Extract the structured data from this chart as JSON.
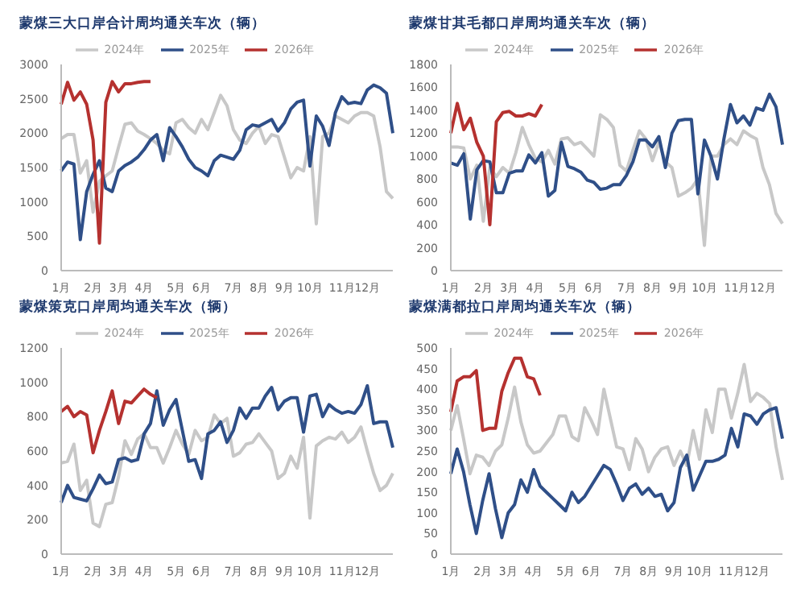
{
  "chart_data": [
    {
      "type": "line",
      "title": "蒙煤三大口岸合计周均通关车次（辆）",
      "legend": "top",
      "marker": "none",
      "grid": false,
      "categories": [
        "1月",
        null,
        null,
        null,
        null,
        "2月",
        null,
        null,
        null,
        "3月",
        null,
        null,
        null,
        "4月",
        null,
        null,
        null,
        null,
        "5月",
        null,
        null,
        null,
        "6月",
        null,
        null,
        null,
        null,
        "7月",
        null,
        null,
        null,
        "8月",
        null,
        null,
        null,
        "9月",
        null,
        null,
        null,
        "10月",
        null,
        null,
        null,
        null,
        "11月",
        null,
        null,
        null,
        "12月",
        null,
        null,
        null,
        null
      ],
      "ylim": [
        0,
        3000
      ],
      "yticks": [
        0,
        500,
        1000,
        1500,
        2000,
        2500,
        3000
      ],
      "series": [
        {
          "name": "2024年",
          "color": "#c8c8c8",
          "values": [
            1920,
            1980,
            1980,
            1420,
            1600,
            850,
            1300,
            1380,
            1450,
            1800,
            2130,
            2150,
            2030,
            1980,
            1920,
            1850,
            1750,
            1700,
            2150,
            2200,
            2080,
            2000,
            2200,
            2050,
            2300,
            2550,
            2400,
            2050,
            1900,
            1850,
            2000,
            2100,
            1850,
            1980,
            1950,
            1650,
            1350,
            1500,
            1450,
            1950,
            680,
            1950,
            2000,
            2250,
            2200,
            2150,
            2250,
            2300,
            2300,
            2250,
            1800,
            1150,
            1050
          ]
        },
        {
          "name": "2025年",
          "color": "#2f4f88",
          "values": [
            1450,
            1580,
            1550,
            450,
            1150,
            1400,
            1600,
            1200,
            1150,
            1450,
            1530,
            1580,
            1650,
            1760,
            1900,
            1980,
            1600,
            2080,
            1950,
            1800,
            1620,
            1500,
            1450,
            1380,
            1600,
            1680,
            1650,
            1620,
            1750,
            2050,
            2120,
            2100,
            2150,
            2200,
            2030,
            2150,
            2350,
            2450,
            2480,
            1520,
            2250,
            2100,
            1820,
            2300,
            2530,
            2430,
            2450,
            2430,
            2630,
            2700,
            2660,
            2580,
            2000
          ]
        },
        {
          "name": "2026年",
          "color": "#b5312f",
          "values": [
            2420,
            2740,
            2480,
            2600,
            2420,
            1900,
            400,
            2450,
            2750,
            2600,
            2720,
            2720,
            2740,
            2750,
            2750,
            null,
            null,
            null,
            null,
            null,
            null,
            null,
            null,
            null,
            null,
            null,
            null,
            null,
            null,
            null,
            null,
            null,
            null,
            null,
            null,
            null,
            null,
            null,
            null,
            null,
            null,
            null,
            null,
            null,
            null,
            null,
            null,
            null,
            null,
            null,
            null,
            null,
            null
          ]
        }
      ]
    },
    {
      "type": "line",
      "title": "蒙煤甘其毛都口岸周均通关车次（辆）",
      "legend": "top",
      "marker": "none",
      "grid": false,
      "categories": [
        "1月",
        null,
        null,
        null,
        null,
        "2月",
        null,
        null,
        null,
        "3月",
        null,
        null,
        null,
        "4月",
        null,
        null,
        null,
        null,
        "5月",
        null,
        null,
        null,
        "6月",
        null,
        null,
        null,
        null,
        "7月",
        null,
        null,
        null,
        "8月",
        null,
        null,
        null,
        "9月",
        null,
        null,
        null,
        "10月",
        null,
        null,
        null,
        null,
        "11月",
        null,
        null,
        null,
        "12月",
        null,
        null,
        null
      ],
      "ylim": [
        0,
        1800
      ],
      "yticks": [
        0,
        200,
        400,
        600,
        800,
        1000,
        1200,
        1400,
        1600,
        1800
      ],
      "series": [
        {
          "name": "2024年",
          "color": "#c8c8c8",
          "values": [
            1080,
            1080,
            1070,
            800,
            920,
            430,
            900,
            820,
            900,
            850,
            1030,
            1250,
            1100,
            980,
            950,
            1050,
            930,
            1150,
            1160,
            1100,
            1120,
            1060,
            1000,
            1360,
            1320,
            1250,
            920,
            870,
            1050,
            1220,
            1150,
            960,
            1120,
            950,
            900,
            650,
            680,
            720,
            800,
            220,
            1000,
            1000,
            1100,
            1150,
            1100,
            1220,
            1180,
            1150,
            900,
            750,
            500,
            410
          ]
        },
        {
          "name": "2025年",
          "color": "#2f4f88",
          "values": [
            940,
            920,
            1020,
            450,
            880,
            960,
            950,
            680,
            680,
            850,
            870,
            870,
            1010,
            940,
            1030,
            650,
            700,
            1120,
            910,
            890,
            860,
            790,
            770,
            710,
            720,
            750,
            750,
            830,
            950,
            1140,
            1140,
            1080,
            1170,
            900,
            1200,
            1310,
            1320,
            1320,
            670,
            1140,
            1000,
            800,
            1150,
            1450,
            1290,
            1350,
            1270,
            1420,
            1400,
            1540,
            1430,
            1100
          ]
        },
        {
          "name": "2026年",
          "color": "#b5312f",
          "values": [
            1200,
            1460,
            1230,
            1330,
            1120,
            1000,
            400,
            1300,
            1380,
            1390,
            1350,
            1350,
            1370,
            1350,
            1450,
            null,
            null,
            null,
            null,
            null,
            null,
            null,
            null,
            null,
            null,
            null,
            null,
            null,
            null,
            null,
            null,
            null,
            null,
            null,
            null,
            null,
            null,
            null,
            null,
            null,
            null,
            null,
            null,
            null,
            null,
            null,
            null,
            null,
            null,
            null,
            null,
            null
          ]
        }
      ]
    },
    {
      "type": "line",
      "title": "蒙煤策克口岸周均通关车次（辆）",
      "legend": "top",
      "marker": "none",
      "grid": false,
      "categories": [
        "1月",
        null,
        null,
        null,
        null,
        "2月",
        null,
        null,
        null,
        "3月",
        null,
        null,
        null,
        "4月",
        null,
        null,
        null,
        null,
        "5月",
        null,
        null,
        null,
        "6月",
        null,
        null,
        null,
        null,
        "7月",
        null,
        null,
        null,
        "8月",
        null,
        null,
        null,
        "9月",
        null,
        null,
        null,
        "10月",
        null,
        null,
        null,
        null,
        "11月",
        null,
        null,
        null,
        "12月",
        null,
        null,
        null,
        null
      ],
      "ylim": [
        0,
        1200
      ],
      "yticks": [
        0,
        200,
        400,
        600,
        800,
        1000,
        1200
      ],
      "series": [
        {
          "name": "2024年",
          "color": "#c8c8c8",
          "values": [
            530,
            540,
            640,
            370,
            430,
            180,
            160,
            290,
            300,
            450,
            660,
            580,
            670,
            700,
            620,
            620,
            530,
            620,
            720,
            640,
            580,
            720,
            660,
            680,
            810,
            760,
            790,
            570,
            590,
            640,
            650,
            700,
            650,
            600,
            440,
            470,
            570,
            500,
            680,
            210,
            630,
            660,
            680,
            670,
            710,
            650,
            680,
            740,
            600,
            470,
            370,
            400,
            470
          ]
        },
        {
          "name": "2025年",
          "color": "#2f4f88",
          "values": [
            300,
            400,
            330,
            320,
            310,
            380,
            460,
            410,
            420,
            550,
            560,
            540,
            550,
            700,
            760,
            950,
            750,
            840,
            900,
            720,
            540,
            550,
            440,
            700,
            720,
            770,
            650,
            720,
            850,
            790,
            850,
            850,
            920,
            970,
            840,
            890,
            910,
            910,
            710,
            920,
            930,
            800,
            870,
            840,
            820,
            830,
            820,
            870,
            980,
            760,
            770,
            770,
            620
          ]
        },
        {
          "name": "2026年",
          "color": "#b5312f",
          "values": [
            830,
            860,
            800,
            830,
            810,
            590,
            720,
            830,
            950,
            760,
            890,
            880,
            920,
            960,
            930,
            910,
            null,
            null,
            null,
            null,
            null,
            null,
            null,
            null,
            null,
            null,
            null,
            null,
            null,
            null,
            null,
            null,
            null,
            null,
            null,
            null,
            null,
            null,
            null,
            null,
            null,
            null,
            null,
            null,
            null,
            null,
            null,
            null,
            null,
            null,
            null,
            null,
            null
          ]
        }
      ]
    },
    {
      "type": "line",
      "title": "蒙煤满都拉口岸周均通关车次（辆）",
      "legend": "top",
      "marker": "none",
      "grid": false,
      "categories": [
        "1月",
        null,
        null,
        null,
        null,
        "2月",
        null,
        null,
        null,
        "3月",
        null,
        null,
        null,
        "4月",
        null,
        null,
        null,
        null,
        "5月",
        null,
        null,
        null,
        "6月",
        null,
        null,
        null,
        null,
        "7月",
        null,
        null,
        null,
        "8月",
        null,
        null,
        null,
        "9月",
        null,
        null,
        null,
        "10月",
        null,
        null,
        null,
        null,
        "11月",
        null,
        null,
        null,
        "12月",
        null,
        null,
        null,
        null
      ],
      "ylim": [
        0,
        500
      ],
      "yticks": [
        0,
        50,
        100,
        150,
        200,
        250,
        300,
        350,
        400,
        450,
        500
      ],
      "series": [
        {
          "name": "2024年",
          "color": "#c8c8c8",
          "values": [
            300,
            360,
            280,
            195,
            240,
            235,
            215,
            250,
            265,
            330,
            405,
            320,
            265,
            245,
            250,
            270,
            290,
            335,
            335,
            285,
            275,
            355,
            325,
            290,
            400,
            330,
            260,
            255,
            205,
            280,
            255,
            200,
            235,
            255,
            260,
            215,
            250,
            215,
            300,
            230,
            350,
            295,
            400,
            400,
            330,
            390,
            460,
            370,
            390,
            380,
            365,
            260,
            180
          ]
        },
        {
          "name": "2025年",
          "color": "#2f4f88",
          "values": [
            195,
            255,
            200,
            120,
            50,
            130,
            195,
            110,
            40,
            100,
            120,
            180,
            150,
            205,
            165,
            150,
            135,
            120,
            105,
            150,
            125,
            140,
            165,
            190,
            215,
            205,
            170,
            130,
            160,
            170,
            145,
            160,
            140,
            145,
            105,
            125,
            210,
            240,
            155,
            190,
            225,
            225,
            230,
            240,
            305,
            260,
            340,
            335,
            315,
            340,
            350,
            355,
            280
          ]
        },
        {
          "name": "2026年",
          "color": "#b5312f",
          "values": [
            345,
            420,
            430,
            430,
            445,
            300,
            305,
            305,
            395,
            440,
            475,
            475,
            430,
            425,
            385,
            null,
            null,
            null,
            null,
            null,
            null,
            null,
            null,
            null,
            null,
            null,
            null,
            null,
            null,
            null,
            null,
            null,
            null,
            null,
            null,
            null,
            null,
            null,
            null,
            null,
            null,
            null,
            null,
            null,
            null,
            null,
            null,
            null,
            null,
            null,
            null,
            null,
            null
          ]
        }
      ]
    }
  ]
}
